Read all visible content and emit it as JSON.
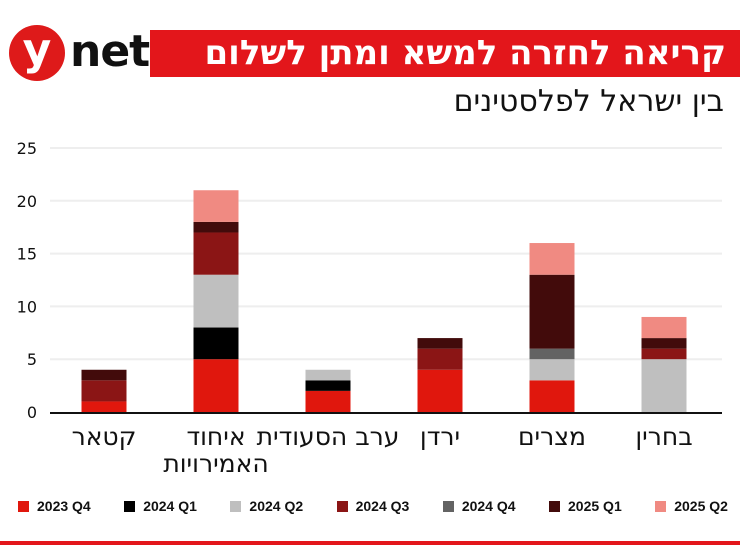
{
  "brand": {
    "logo_y": "y",
    "logo_net": "net"
  },
  "header": {
    "title": "קריאה לחזרה למשא ומתן לשלום",
    "subtitle": "בין ישראל לפלסטינים"
  },
  "chart_data": {
    "type": "bar",
    "stacked": true,
    "title": "קריאה לחזרה למשא ומתן לשלום",
    "subtitle": "בין ישראל לפלסטינים",
    "xlabel": "",
    "ylabel": "",
    "ylim": [
      0,
      25
    ],
    "yticks": [
      0,
      5,
      10,
      15,
      20,
      25
    ],
    "grid": true,
    "legend": "bottom",
    "categories": [
      "קטאר",
      "איחוד האמירויות",
      "ערב הסעודית",
      "ירדן",
      "מצרים",
      "בחרין"
    ],
    "series": [
      {
        "name": "2023 Q4",
        "color": "#e0170d",
        "values": [
          1,
          5,
          2,
          4,
          3,
          0
        ]
      },
      {
        "name": "2024 Q1",
        "color": "#000000",
        "values": [
          0,
          3,
          1,
          0,
          0,
          0
        ]
      },
      {
        "name": "2024 Q2",
        "color": "#bfbfbf",
        "values": [
          0,
          5,
          1,
          0,
          2,
          5
        ]
      },
      {
        "name": "2024 Q3",
        "color": "#8b1515",
        "values": [
          2,
          4,
          0,
          2,
          0,
          1
        ]
      },
      {
        "name": "2024 Q4",
        "color": "#636363",
        "values": [
          0,
          0,
          0,
          0,
          1,
          0
        ]
      },
      {
        "name": "2025 Q1",
        "color": "#420b0b",
        "values": [
          1,
          1,
          0,
          1,
          7,
          1
        ]
      },
      {
        "name": "2025 Q2",
        "color": "#f08a82",
        "values": [
          0,
          3,
          0,
          0,
          3,
          2
        ]
      }
    ]
  }
}
